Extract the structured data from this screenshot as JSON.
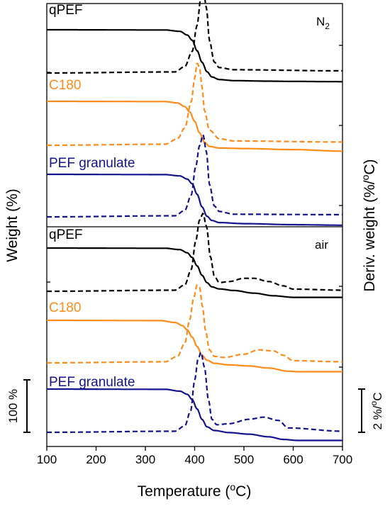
{
  "chart_data": {
    "type": "line",
    "xlabel_main": "Temperature (",
    "xlabel_sup": "o",
    "xlabel_tail": "C)",
    "ylabel_left": "Weight (%)",
    "ylabel_right_main": "Deriv. weight (%/",
    "ylabel_right_sup": "o",
    "ylabel_right_tail": "C)",
    "xlim": [
      100,
      700
    ],
    "xticks": [
      "100",
      "200",
      "300",
      "400",
      "500",
      "600",
      "700"
    ],
    "scalebars": {
      "weight": {
        "main": "100 %"
      },
      "deriv": {
        "main": "2 %/",
        "sup": "o",
        "tail": "C"
      }
    },
    "line_styles": {
      "weight": "solid",
      "derivative": "dashed"
    },
    "panels": [
      {
        "condition_main": "N",
        "condition_sub": "2",
        "series": [
          {
            "name": "qPEF",
            "color": "#000000",
            "weight": {
              "x": [
                100,
                340,
                370,
                385,
                395,
                405,
                415,
                425,
                435,
                450,
                480,
                550,
                600,
                700
              ],
              "y": [
                100,
                99.6,
                97,
                90,
                80,
                60,
                38,
                20,
                10,
                5,
                3,
                2,
                1.5,
                1
              ]
            },
            "deriv": {
              "x": [
                100,
                360,
                380,
                395,
                405,
                412,
                418,
                424,
                430,
                440,
                450,
                480,
                700
              ],
              "y": [
                0,
                0.05,
                0.3,
                1.0,
                2.2,
                3.4,
                3.8,
                3.0,
                1.5,
                0.5,
                0.25,
                0.15,
                0.1
              ]
            }
          },
          {
            "name": "C180",
            "color": "#FF8C1A",
            "weight": {
              "x": [
                100,
                340,
                365,
                380,
                390,
                400,
                410,
                420,
                430,
                450,
                500,
                600,
                700
              ],
              "y": [
                100,
                99.6,
                97,
                90,
                80,
                62,
                40,
                22,
                14,
                11,
                10,
                8,
                5
              ]
            },
            "deriv": {
              "x": [
                100,
                340,
                365,
                380,
                393,
                400,
                405,
                410,
                415,
                420,
                430,
                450,
                480,
                700
              ],
              "y": [
                0,
                0.05,
                0.3,
                0.8,
                2.0,
                3.1,
                3.8,
                3.6,
                2.7,
                1.6,
                0.7,
                0.3,
                0.2,
                0.15
              ]
            }
          },
          {
            "name": "PEF granulate",
            "color": "#14148C",
            "weight": {
              "x": [
                100,
                340,
                370,
                385,
                395,
                405,
                415,
                425,
                435,
                450,
                500,
                600,
                700
              ],
              "y": [
                100,
                99.5,
                97,
                91,
                82,
                62,
                38,
                20,
                12,
                8,
                6,
                4,
                3
              ]
            },
            "deriv": {
              "x": [
                100,
                360,
                380,
                393,
                402,
                410,
                417,
                424,
                430,
                440,
                450,
                480,
                700
              ],
              "y": [
                0,
                0.05,
                0.3,
                1.0,
                2.3,
                3.3,
                3.8,
                3.0,
                1.5,
                0.5,
                0.25,
                0.12,
                0.1
              ]
            }
          }
        ]
      },
      {
        "condition_main": "air",
        "condition_sub": "",
        "series": [
          {
            "name": "qPEF",
            "color": "#000000",
            "weight": {
              "x": [
                100,
                340,
                370,
                385,
                395,
                405,
                415,
                425,
                435,
                450,
                480,
                520,
                560,
                600,
                700
              ],
              "y": [
                100,
                99.6,
                97,
                91,
                82,
                66,
                48,
                34,
                26,
                22,
                19,
                14,
                9,
                6,
                6
              ]
            },
            "deriv": {
              "x": [
                100,
                360,
                380,
                393,
                402,
                410,
                417,
                424,
                432,
                440,
                450,
                470,
                500,
                520,
                550,
                580,
                600,
                700
              ],
              "y": [
                0,
                0.05,
                0.3,
                1.0,
                2.3,
                3.3,
                3.6,
                3.0,
                1.6,
                0.7,
                0.4,
                0.45,
                0.6,
                0.6,
                0.45,
                0.25,
                0.1,
                0.05
              ]
            }
          },
          {
            "name": "C180",
            "color": "#FF8C1A",
            "weight": {
              "x": [
                100,
                330,
                360,
                375,
                385,
                395,
                405,
                415,
                425,
                440,
                470,
                510,
                550,
                590,
                610,
                700
              ],
              "y": [
                100,
                99.5,
                96,
                90,
                82,
                68,
                50,
                33,
                24,
                18,
                15,
                13,
                9,
                3,
                2,
                2
              ]
            },
            "deriv": {
              "x": [
                100,
                340,
                365,
                380,
                390,
                398,
                405,
                410,
                416,
                422,
                430,
                440,
                460,
                500,
                530,
                560,
                580,
                600,
                700
              ],
              "y": [
                0,
                0.05,
                0.3,
                0.9,
                2.0,
                3.0,
                3.6,
                3.5,
                2.6,
                1.5,
                0.6,
                0.3,
                0.25,
                0.4,
                0.6,
                0.55,
                0.35,
                0.1,
                0.05
              ]
            }
          },
          {
            "name": "PEF granulate",
            "color": "#14148C",
            "weight": {
              "x": [
                100,
                340,
                370,
                385,
                395,
                405,
                415,
                425,
                440,
                470,
                510,
                550,
                580,
                610,
                700
              ],
              "y": [
                100,
                99.5,
                96,
                90,
                80,
                62,
                42,
                28,
                21,
                17,
                14,
                9,
                4,
                2,
                2
              ]
            },
            "deriv": {
              "x": [
                100,
                360,
                380,
                392,
                400,
                407,
                413,
                420,
                428,
                435,
                445,
                470,
                510,
                540,
                570,
                590,
                700
              ],
              "y": [
                0,
                0.05,
                0.3,
                1.0,
                2.4,
                3.4,
                3.7,
                3.0,
                1.5,
                0.6,
                0.35,
                0.4,
                0.6,
                0.7,
                0.55,
                0.2,
                0.05
              ]
            }
          }
        ]
      }
    ]
  }
}
